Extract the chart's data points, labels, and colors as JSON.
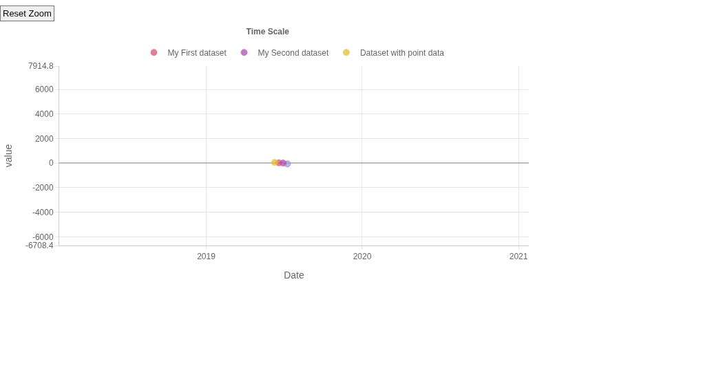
{
  "chart_data": {
    "type": "scatter",
    "title": "Time Scale",
    "xlabel": "Date",
    "ylabel": "value",
    "x": [
      "2019-06-10",
      "2019-06-20",
      "2019-06-30",
      "2019-07-10"
    ],
    "series": [
      {
        "name": "My First dataset",
        "color": "#e05070",
        "colors": [
          "#e05070",
          "#e05070",
          "#e05070",
          "#80b0e0"
        ],
        "values": [
          null,
          30,
          null,
          -60
        ]
      },
      {
        "name": "My Second dataset",
        "color": "#b050b0",
        "values": [
          null,
          null,
          10,
          null
        ]
      },
      {
        "name": "Dataset with point data",
        "color": "#e0c030",
        "values": [
          60,
          null,
          null,
          null
        ]
      }
    ],
    "xlim": [
      "2018-01-22",
      "2021-01-25"
    ],
    "xticks": [
      {
        "value": "2019-01-01",
        "label": "2019"
      },
      {
        "value": "2020-01-01",
        "label": "2020"
      },
      {
        "value": "2021-01-01",
        "label": "2021"
      }
    ],
    "ylim": [
      -6708.4,
      7914.8
    ],
    "yticks": [
      -6708.4,
      -6000,
      -4000,
      -2000,
      0,
      2000,
      4000,
      6000,
      7914.8
    ],
    "grid": true,
    "legend": "top",
    "marker": "circle",
    "annotations": [
      "Reset Zoom"
    ]
  }
}
